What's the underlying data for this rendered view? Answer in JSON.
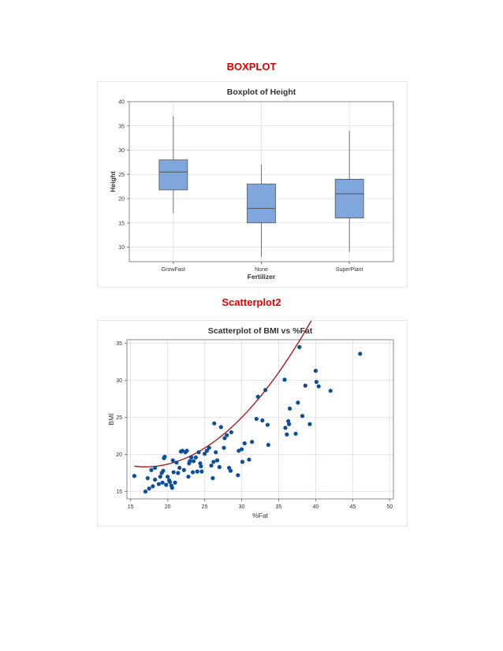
{
  "headings": {
    "boxplot": "BOXPLOT",
    "scatter": "Scatterplot2"
  },
  "colors": {
    "heading": "#e00000",
    "box_fill": "#7fa7dd",
    "box_stroke": "#555555",
    "point": "#0b4f9c",
    "fit_line": "#a51d1d",
    "grid": "#e4e4e4"
  },
  "chart_data": [
    {
      "type": "boxplot",
      "title": "Boxplot of Height",
      "xlabel": "Fertilizer",
      "ylabel": "Height",
      "ylim": [
        7,
        40
      ],
      "yticks": [
        10,
        15,
        20,
        25,
        30,
        35,
        40
      ],
      "grid": true,
      "categories": [
        "GrowFast",
        "None",
        "SuperPlant"
      ],
      "boxes": [
        {
          "min": 17,
          "q1": 21.8,
          "median": 25.5,
          "q3": 28,
          "max": 37
        },
        {
          "min": 8,
          "q1": 15,
          "median": 18,
          "q3": 23,
          "max": 27
        },
        {
          "min": 9,
          "q1": 16,
          "median": 21,
          "q3": 24,
          "max": 34
        }
      ]
    },
    {
      "type": "scatter",
      "title": "Scatterplot of BMI vs %Fat",
      "xlabel": "%Fat",
      "ylabel": "BMI",
      "xlim": [
        14.5,
        50.5
      ],
      "ylim": [
        14,
        35.5
      ],
      "xticks": [
        15,
        20,
        25,
        30,
        35,
        40,
        45,
        50
      ],
      "yticks": [
        15,
        20,
        25,
        30,
        35
      ],
      "grid": true,
      "fit": {
        "type": "quadratic",
        "x_range": [
          15.5,
          46
        ],
        "coefficients": [
          29.61,
          -1.33,
          0.0392
        ]
      },
      "points": [
        [
          15.5,
          17.1
        ],
        [
          17,
          15
        ],
        [
          17.3,
          16.8
        ],
        [
          17.5,
          15.4
        ],
        [
          17.8,
          17.9
        ],
        [
          18,
          15.7
        ],
        [
          18.3,
          16.6
        ],
        [
          18.3,
          18.2
        ],
        [
          18.8,
          16
        ],
        [
          19,
          17
        ],
        [
          19.2,
          17.5
        ],
        [
          19.3,
          16.2
        ],
        [
          19.4,
          17.8
        ],
        [
          19.5,
          19.5
        ],
        [
          19.6,
          19.7
        ],
        [
          19.8,
          15.9
        ],
        [
          20,
          17
        ],
        [
          20.2,
          16.5
        ],
        [
          20.3,
          16.3
        ],
        [
          20.5,
          15.8
        ],
        [
          20.6,
          15.5
        ],
        [
          20.7,
          19.2
        ],
        [
          20.8,
          17.6
        ],
        [
          21,
          16.2
        ],
        [
          21.2,
          18.9
        ],
        [
          21.4,
          17.5
        ],
        [
          21.6,
          18.2
        ],
        [
          21.8,
          20.4
        ],
        [
          22,
          20.5
        ],
        [
          22.2,
          17.9
        ],
        [
          22.4,
          20.3
        ],
        [
          22.6,
          20.5
        ],
        [
          22.8,
          17
        ],
        [
          22.9,
          18.8
        ],
        [
          23,
          19.1
        ],
        [
          23.2,
          19.6
        ],
        [
          23.4,
          17.6
        ],
        [
          23.5,
          19.1
        ],
        [
          23.8,
          19.6
        ],
        [
          24,
          17.7
        ],
        [
          24.2,
          20.3
        ],
        [
          24.4,
          18.8
        ],
        [
          24.5,
          18.4
        ],
        [
          24.6,
          17.7
        ],
        [
          25,
          20.1
        ],
        [
          25.3,
          20.5
        ],
        [
          25.6,
          20.9
        ],
        [
          25.9,
          18.5
        ],
        [
          26.1,
          16.8
        ],
        [
          26.2,
          19
        ],
        [
          26.3,
          24.2
        ],
        [
          26.5,
          20.3
        ],
        [
          26.7,
          19.2
        ],
        [
          27,
          18.3
        ],
        [
          27.2,
          23.7
        ],
        [
          27.6,
          20.9
        ],
        [
          27.7,
          22.2
        ],
        [
          28,
          22.6
        ],
        [
          28.3,
          18.2
        ],
        [
          28.5,
          17.8
        ],
        [
          28.6,
          23
        ],
        [
          29.5,
          17.2
        ],
        [
          29.6,
          20.5
        ],
        [
          30,
          20.7
        ],
        [
          30.1,
          19
        ],
        [
          30.4,
          21.5
        ],
        [
          31,
          19.3
        ],
        [
          31.4,
          21.7
        ],
        [
          32,
          24.8
        ],
        [
          32.2,
          27.8
        ],
        [
          32.8,
          24.6
        ],
        [
          33.2,
          28.7
        ],
        [
          33.5,
          24
        ],
        [
          33.6,
          21.3
        ],
        [
          35.8,
          30.1
        ],
        [
          35.9,
          23.6
        ],
        [
          36.1,
          22.7
        ],
        [
          36.3,
          24.5
        ],
        [
          36.4,
          24.1
        ],
        [
          36.5,
          26.2
        ],
        [
          37.3,
          22.8
        ],
        [
          37.6,
          27
        ],
        [
          37.8,
          34.5
        ],
        [
          38.2,
          25.2
        ],
        [
          38.6,
          29.3
        ],
        [
          39.2,
          24.1
        ],
        [
          40,
          31.3
        ],
        [
          40.1,
          29.8
        ],
        [
          40.4,
          29.2
        ],
        [
          42,
          28.6
        ],
        [
          46,
          33.6
        ]
      ]
    }
  ]
}
